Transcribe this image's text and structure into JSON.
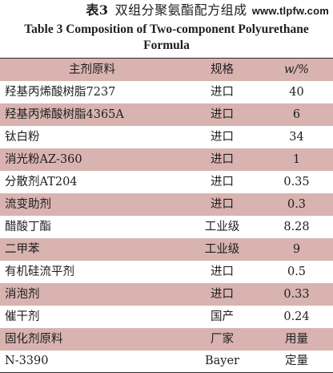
{
  "title": {
    "table_no": "表3",
    "chinese": "双组分聚氨酯配方组成",
    "english": "Table 3 Composition of Two-component Polyurethane Formula"
  },
  "watermark": "www.tlpfw.com",
  "colors": {
    "row_shade": "#d8b3b0",
    "row_plain": "#ffffff"
  },
  "table": {
    "headers": [
      "主剂原料",
      "规格",
      "w/%"
    ],
    "rows": [
      {
        "name": "羟基丙烯酸树脂7237",
        "spec": "进口",
        "value": "40"
      },
      {
        "name": "羟基丙烯酸树脂4365A",
        "spec": "进口",
        "value": "6"
      },
      {
        "name": "钛白粉",
        "spec": "进口",
        "value": "34"
      },
      {
        "name": "消光粉AZ-360",
        "spec": "进口",
        "value": "1"
      },
      {
        "name": "分散剂AT204",
        "spec": "进口",
        "value": "0.35"
      },
      {
        "name": "流变助剂",
        "spec": "进口",
        "value": "0.3"
      },
      {
        "name": "醋酸丁酯",
        "spec": "工业级",
        "value": "8.28"
      },
      {
        "name": "二甲苯",
        "spec": "工业级",
        "value": "9"
      },
      {
        "name": "有机硅流平剂",
        "spec": "进口",
        "value": "0.5"
      },
      {
        "name": "消泡剂",
        "spec": "进口",
        "value": "0.33"
      },
      {
        "name": "催干剂",
        "spec": "国产",
        "value": "0.24"
      },
      {
        "name": "固化剂原料",
        "spec": "厂家",
        "value": "用量"
      },
      {
        "name": "N-3390",
        "spec": "Bayer",
        "value": "定量"
      }
    ]
  }
}
